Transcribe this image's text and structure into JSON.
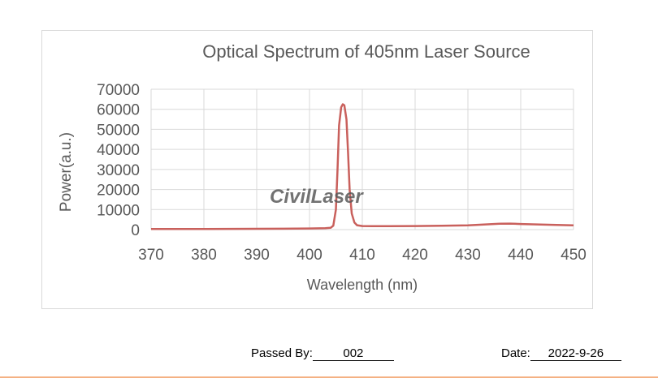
{
  "chart_data": {
    "type": "line",
    "title": "Optical Spectrum of 405nm Laser Source",
    "xlabel": "Wavelength (nm)",
    "ylabel": "Power(a.u.)",
    "xlim": [
      370,
      450
    ],
    "ylim": [
      0,
      70000
    ],
    "xticks": [
      370,
      380,
      390,
      400,
      410,
      420,
      430,
      440,
      450
    ],
    "yticks": [
      0,
      10000,
      20000,
      30000,
      40000,
      50000,
      60000,
      70000
    ],
    "grid": true,
    "legend": "none",
    "series": [
      {
        "color": "#c9605c",
        "x": [
          370,
          375,
          380,
          385,
          390,
          395,
          400,
          403,
          404,
          404.5,
          405,
          405.3,
          405.6,
          406,
          406.3,
          406.6,
          407,
          407.3,
          407.6,
          408,
          408.5,
          409,
          410,
          412,
          415,
          420,
          425,
          430,
          433,
          436,
          438,
          440,
          443,
          446,
          450
        ],
        "values": [
          300,
          300,
          300,
          350,
          400,
          450,
          550,
          700,
          900,
          2000,
          10000,
          30000,
          52000,
          61000,
          62500,
          62000,
          55000,
          38000,
          20000,
          8000,
          3500,
          2200,
          1800,
          1700,
          1700,
          1800,
          1900,
          2100,
          2500,
          2900,
          3000,
          2800,
          2600,
          2400,
          2100
        ]
      }
    ]
  },
  "watermark": "CivilLaser",
  "footer": {
    "passed_by_label": "Passed  By:",
    "passed_by_value": "002",
    "date_label": "Date:",
    "date_value": "2022-9-26"
  },
  "colors": {
    "series_line": "#c9605c",
    "watermark": "#3b78b8",
    "footer_rule": "#f4b183"
  }
}
